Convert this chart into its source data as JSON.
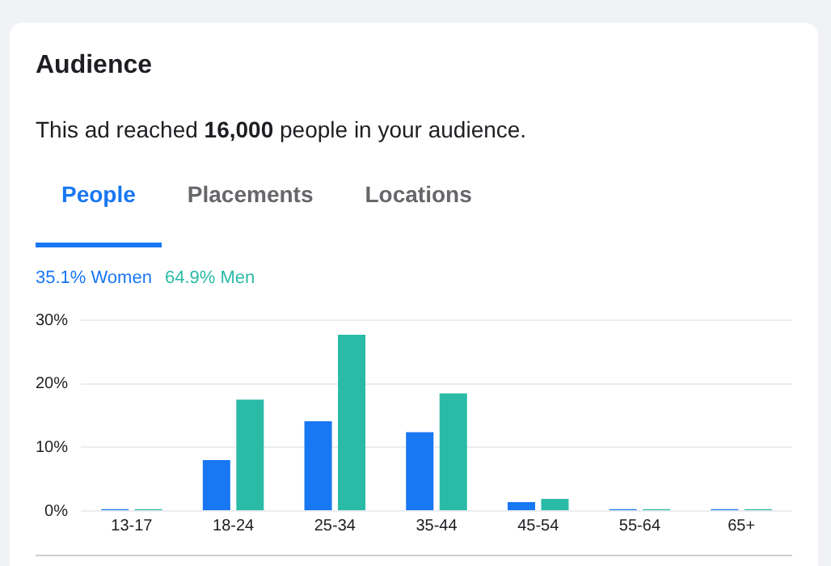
{
  "chart_data": {
    "type": "bar",
    "title": "Audience",
    "subtitle": "This ad reached 16,000 people in your audience.",
    "annotations": [
      "People",
      "Placements",
      "Locations"
    ],
    "categories": [
      "13-17",
      "18-24",
      "25-34",
      "35-44",
      "45-54",
      "55-64",
      "65+"
    ],
    "series": [
      {
        "name": "35.1% Women",
        "color": "#1877f2",
        "values": [
          0.3,
          8.0,
          14.1,
          12.4,
          1.4,
          0.3,
          0.3
        ]
      },
      {
        "name": "64.9% Men",
        "color": "#2abba7",
        "values": [
          0.3,
          17.5,
          27.7,
          18.5,
          1.9,
          0.3,
          0.3
        ]
      }
    ],
    "ylim": [
      0,
      30
    ],
    "yticks": [
      {
        "value": 0,
        "label": "0%"
      },
      {
        "value": 10,
        "label": "10%"
      },
      {
        "value": 20,
        "label": "20%"
      },
      {
        "value": 30,
        "label": "30%"
      }
    ],
    "grid": "y",
    "legend": "top left"
  }
}
